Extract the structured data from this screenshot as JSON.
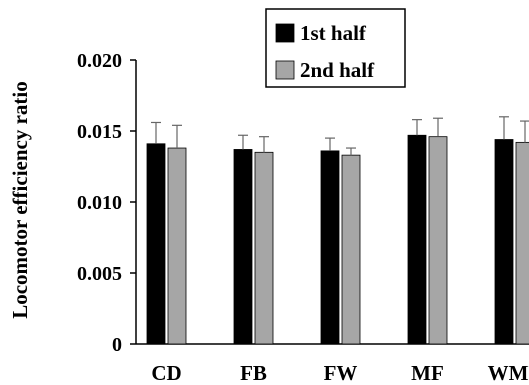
{
  "chart_data": {
    "type": "bar",
    "title": "",
    "xlabel": "",
    "ylabel": "Locomotor efficiency ratio",
    "ylim": [
      0,
      0.02
    ],
    "yticks": [
      0,
      0.005,
      0.01,
      0.015,
      0.02
    ],
    "ytick_labels": [
      "0",
      "0.005",
      "0.010",
      "0.015",
      "0.020"
    ],
    "categories": [
      "CD",
      "FB",
      "FW",
      "MF",
      "WMF"
    ],
    "series": [
      {
        "name": "1st half",
        "color": "#000000",
        "values": [
          0.0141,
          0.0137,
          0.0136,
          0.0147,
          0.0144
        ],
        "errors": [
          0.0015,
          0.001,
          0.0009,
          0.0011,
          0.0016
        ]
      },
      {
        "name": "2nd half",
        "color": "#a6a6a6",
        "values": [
          0.0138,
          0.0135,
          0.0133,
          0.0146,
          0.0142
        ],
        "errors": [
          0.0016,
          0.0011,
          0.0005,
          0.0013,
          0.0015
        ]
      }
    ],
    "grid": false,
    "legend_position": "top-center"
  }
}
